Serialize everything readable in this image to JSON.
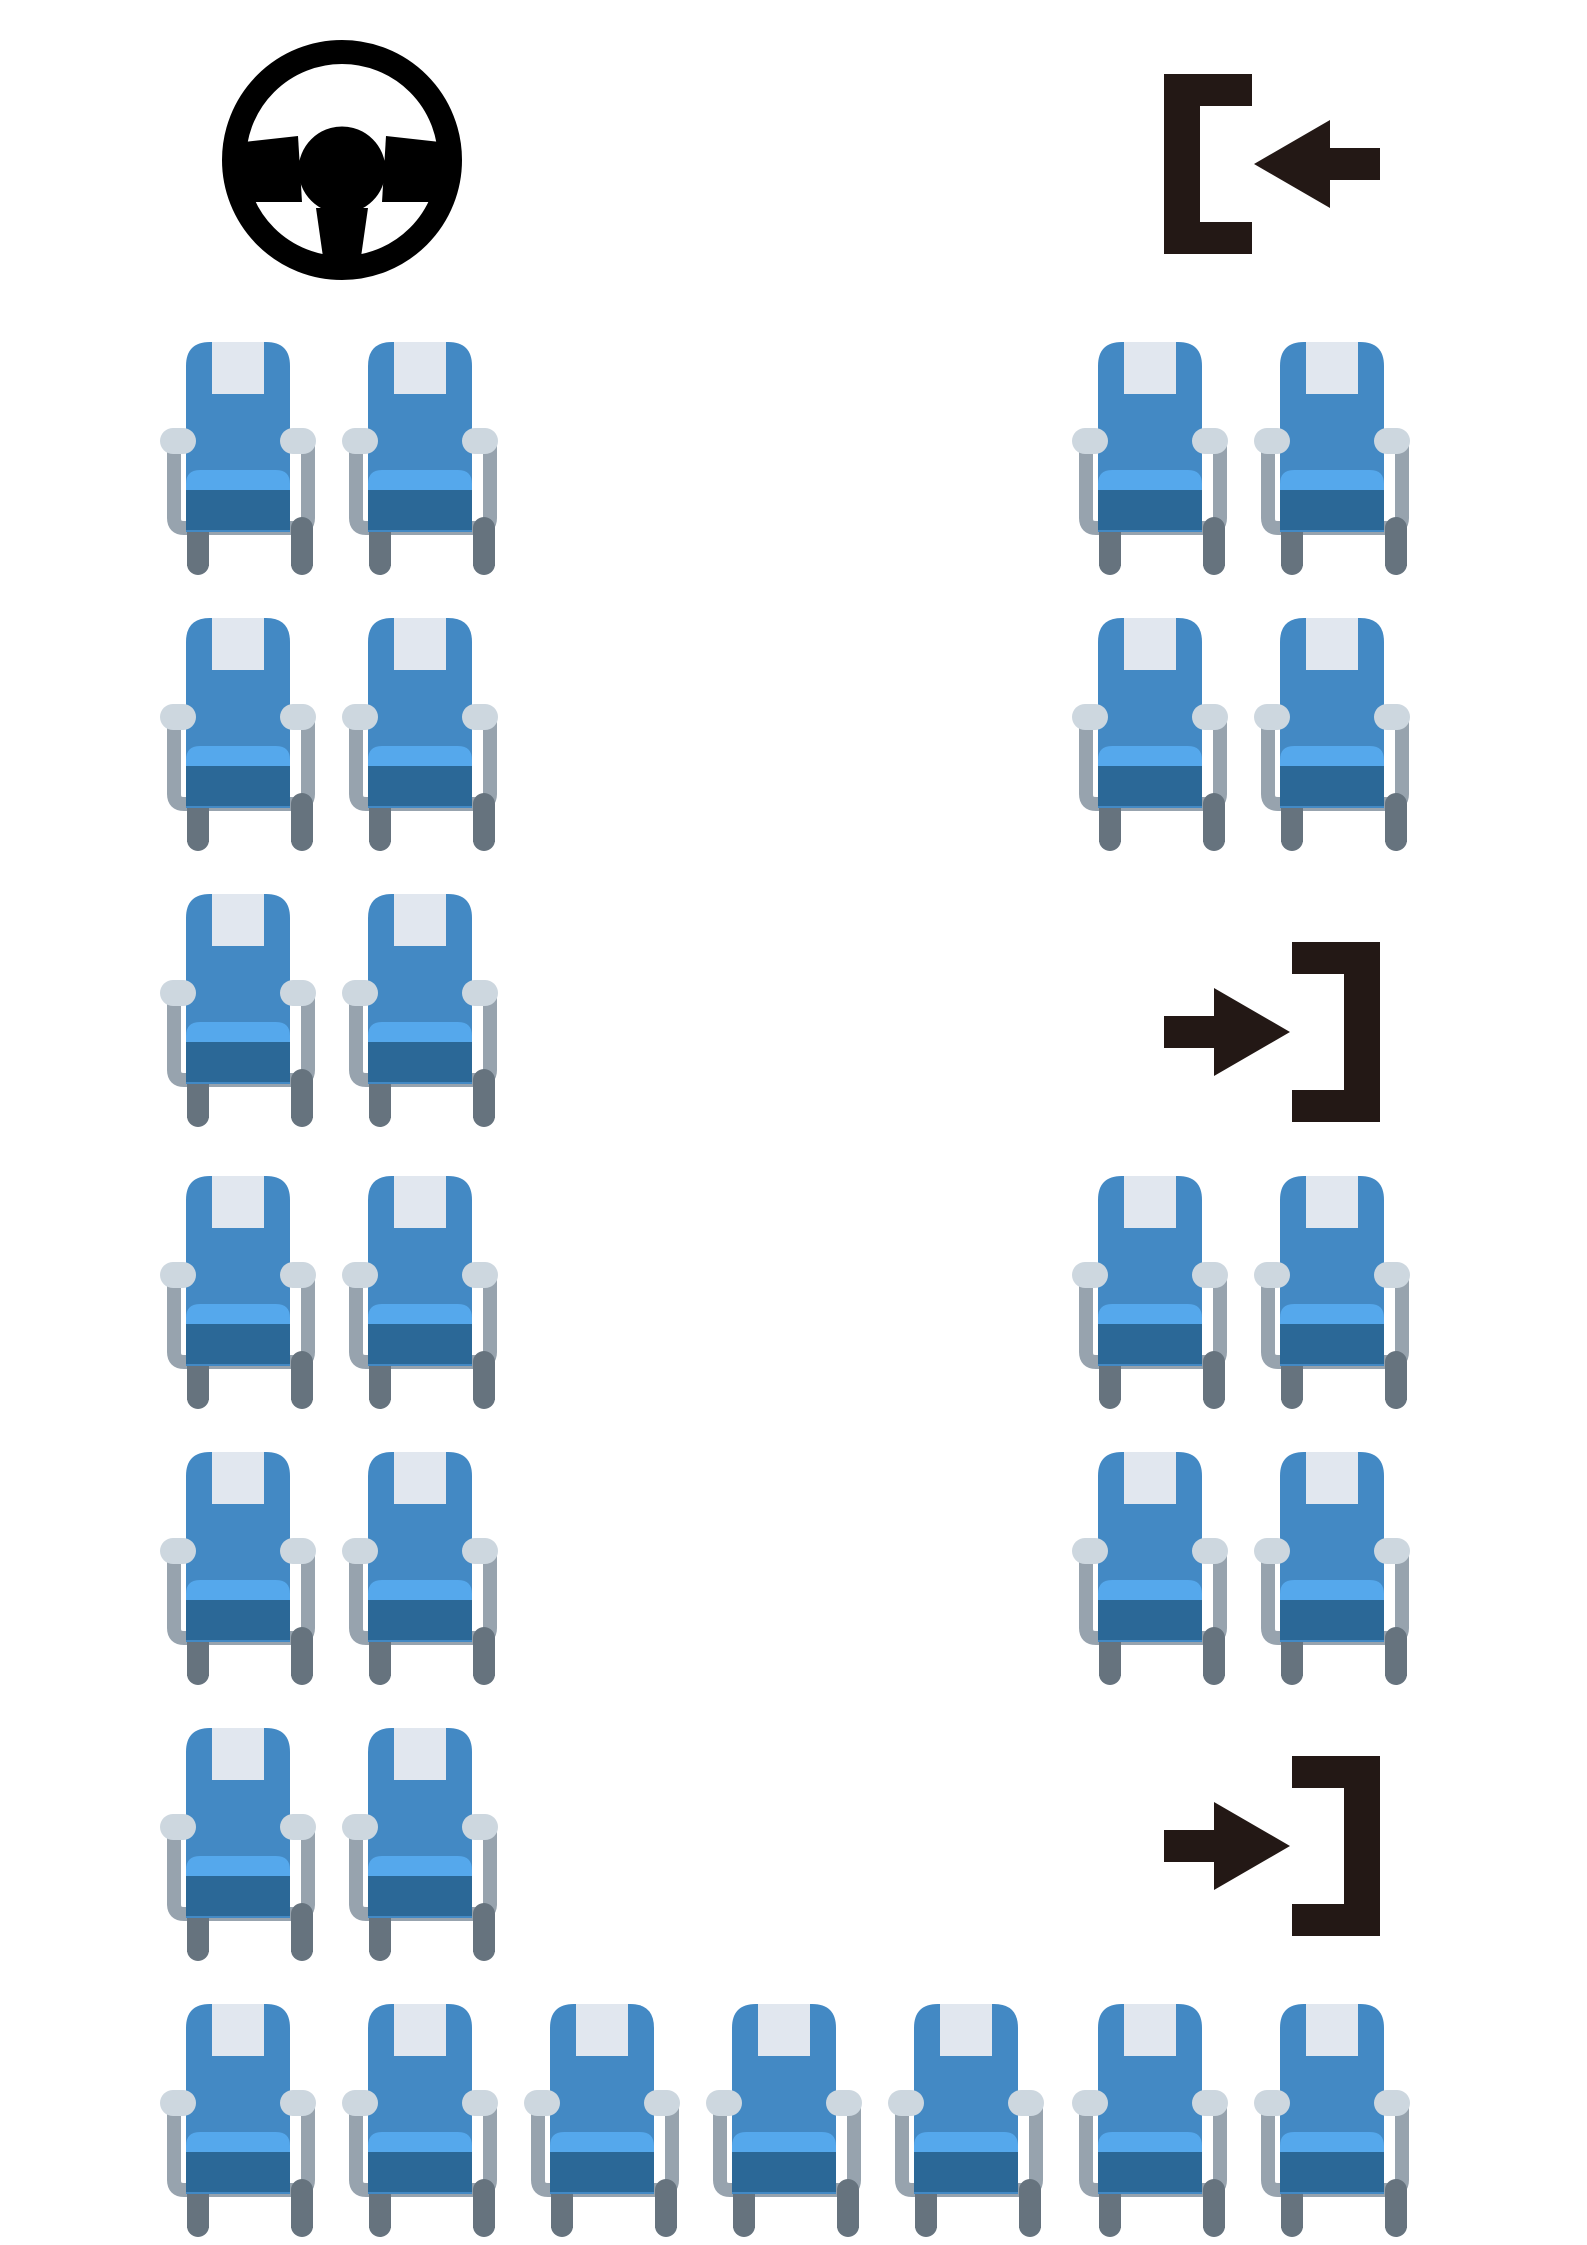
{
  "layout": {
    "name": "bus-seat-map",
    "rows_left": 6,
    "rows_right": 4,
    "rear_bench_seats": 7,
    "seats_total": 27
  },
  "colors": {
    "seat_back": "#4389C4",
    "seat_headrest": "#E1E7EF",
    "seat_cushion_top": "#55A8EC",
    "seat_cushion_bottom": "#2B6897",
    "seat_frame": "#97A3AE",
    "seat_armrest": "#CDD7DF",
    "seat_legs": "#66737E",
    "door_icon": "#231815",
    "steering_wheel": "#000000",
    "background": "#FFFFFF"
  },
  "icons": {
    "driver": "steering-wheel-icon",
    "front_door": "exit-door-icon",
    "middle_door": "entry-door-icon",
    "rear_door": "entry-door-icon",
    "seat": "seat-icon"
  },
  "seats": {
    "left_column_rows": [
      {
        "row": 1,
        "seats": 2
      },
      {
        "row": 2,
        "seats": 2
      },
      {
        "row": 3,
        "seats": 2
      },
      {
        "row": 4,
        "seats": 2
      },
      {
        "row": 5,
        "seats": 2
      },
      {
        "row": 6,
        "seats": 2
      }
    ],
    "right_column_rows": [
      {
        "row": 1,
        "seats": 2
      },
      {
        "row": 2,
        "seats": 2
      },
      {
        "row": 4,
        "seats": 2
      },
      {
        "row": 5,
        "seats": 2
      }
    ],
    "rear_bench": {
      "seats": 7
    }
  }
}
